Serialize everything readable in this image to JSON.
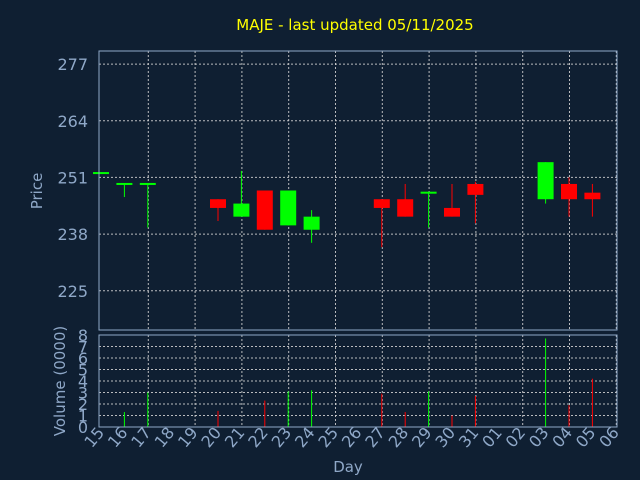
{
  "chart_data": {
    "type": "candlestick",
    "title": "MAJE - last updated 05/11/2025",
    "xlabel": "Day",
    "price_panel": {
      "ylabel": "Price",
      "ylim": [
        216,
        280
      ],
      "yticks": [
        225,
        238,
        251,
        264,
        277
      ],
      "grid": true
    },
    "volume_panel": {
      "ylabel": "Volume (0000)",
      "ylim": [
        0,
        8
      ],
      "yticks": [
        0,
        1,
        2,
        3,
        4,
        5,
        6,
        7,
        8
      ],
      "grid": true
    },
    "x_tick_labels": [
      "15",
      "16",
      "17",
      "18",
      "19",
      "20",
      "21",
      "22",
      "23",
      "24",
      "25",
      "26",
      "27",
      "28",
      "29",
      "30",
      "31",
      "01",
      "02",
      "03",
      "04",
      "05",
      "06"
    ],
    "candles": [
      {
        "day": "15",
        "open": 252,
        "close": 252,
        "high": 252,
        "low": 252,
        "volume": 0.0
      },
      {
        "day": "16",
        "open": 249.5,
        "close": 249.5,
        "high": 249.5,
        "low": 246.5,
        "volume": 1.3
      },
      {
        "day": "17",
        "open": 249.5,
        "close": 249.5,
        "high": 249.5,
        "low": 239.5,
        "volume": 3.0
      },
      {
        "day": "20",
        "open": 246,
        "close": 244,
        "high": 246,
        "low": 241,
        "volume": 1.4
      },
      {
        "day": "21",
        "open": 242,
        "close": 245,
        "high": 252.5,
        "low": 242,
        "volume": 0.0
      },
      {
        "day": "22",
        "open": 248,
        "close": 239,
        "high": 248,
        "low": 239,
        "volume": 2.3
      },
      {
        "day": "23",
        "open": 240,
        "close": 248,
        "high": 248,
        "low": 240,
        "volume": 3.1
      },
      {
        "day": "24",
        "open": 239,
        "close": 242,
        "high": 243.5,
        "low": 236,
        "volume": 3.2
      },
      {
        "day": "27",
        "open": 246,
        "close": 244,
        "high": 246,
        "low": 235,
        "volume": 2.9
      },
      {
        "day": "28",
        "open": 246,
        "close": 242,
        "high": 249.5,
        "low": 242,
        "volume": 1.3
      },
      {
        "day": "29",
        "open": 247.5,
        "close": 247.5,
        "high": 247.5,
        "low": 239.5,
        "volume": 3.1
      },
      {
        "day": "30",
        "open": 244,
        "close": 242,
        "high": 249.5,
        "low": 242,
        "volume": 1.0
      },
      {
        "day": "31",
        "open": 249.5,
        "close": 247,
        "high": 250,
        "low": 240.5,
        "volume": 2.7
      },
      {
        "day": "03",
        "open": 246,
        "close": 254.5,
        "high": 254.5,
        "low": 245,
        "volume": 7.7
      },
      {
        "day": "04",
        "open": 249.5,
        "close": 246,
        "high": 251,
        "low": 242,
        "volume": 1.9
      },
      {
        "day": "05",
        "open": 247.5,
        "close": 246,
        "high": 249.5,
        "low": 242,
        "volume": 4.2
      }
    ],
    "colors": {
      "background": "#0f1f32",
      "up": "#00ff00",
      "down": "#ff0000",
      "text": "#8fa8c8",
      "title": "#ffff00",
      "grid": "#d8d8d8"
    }
  }
}
